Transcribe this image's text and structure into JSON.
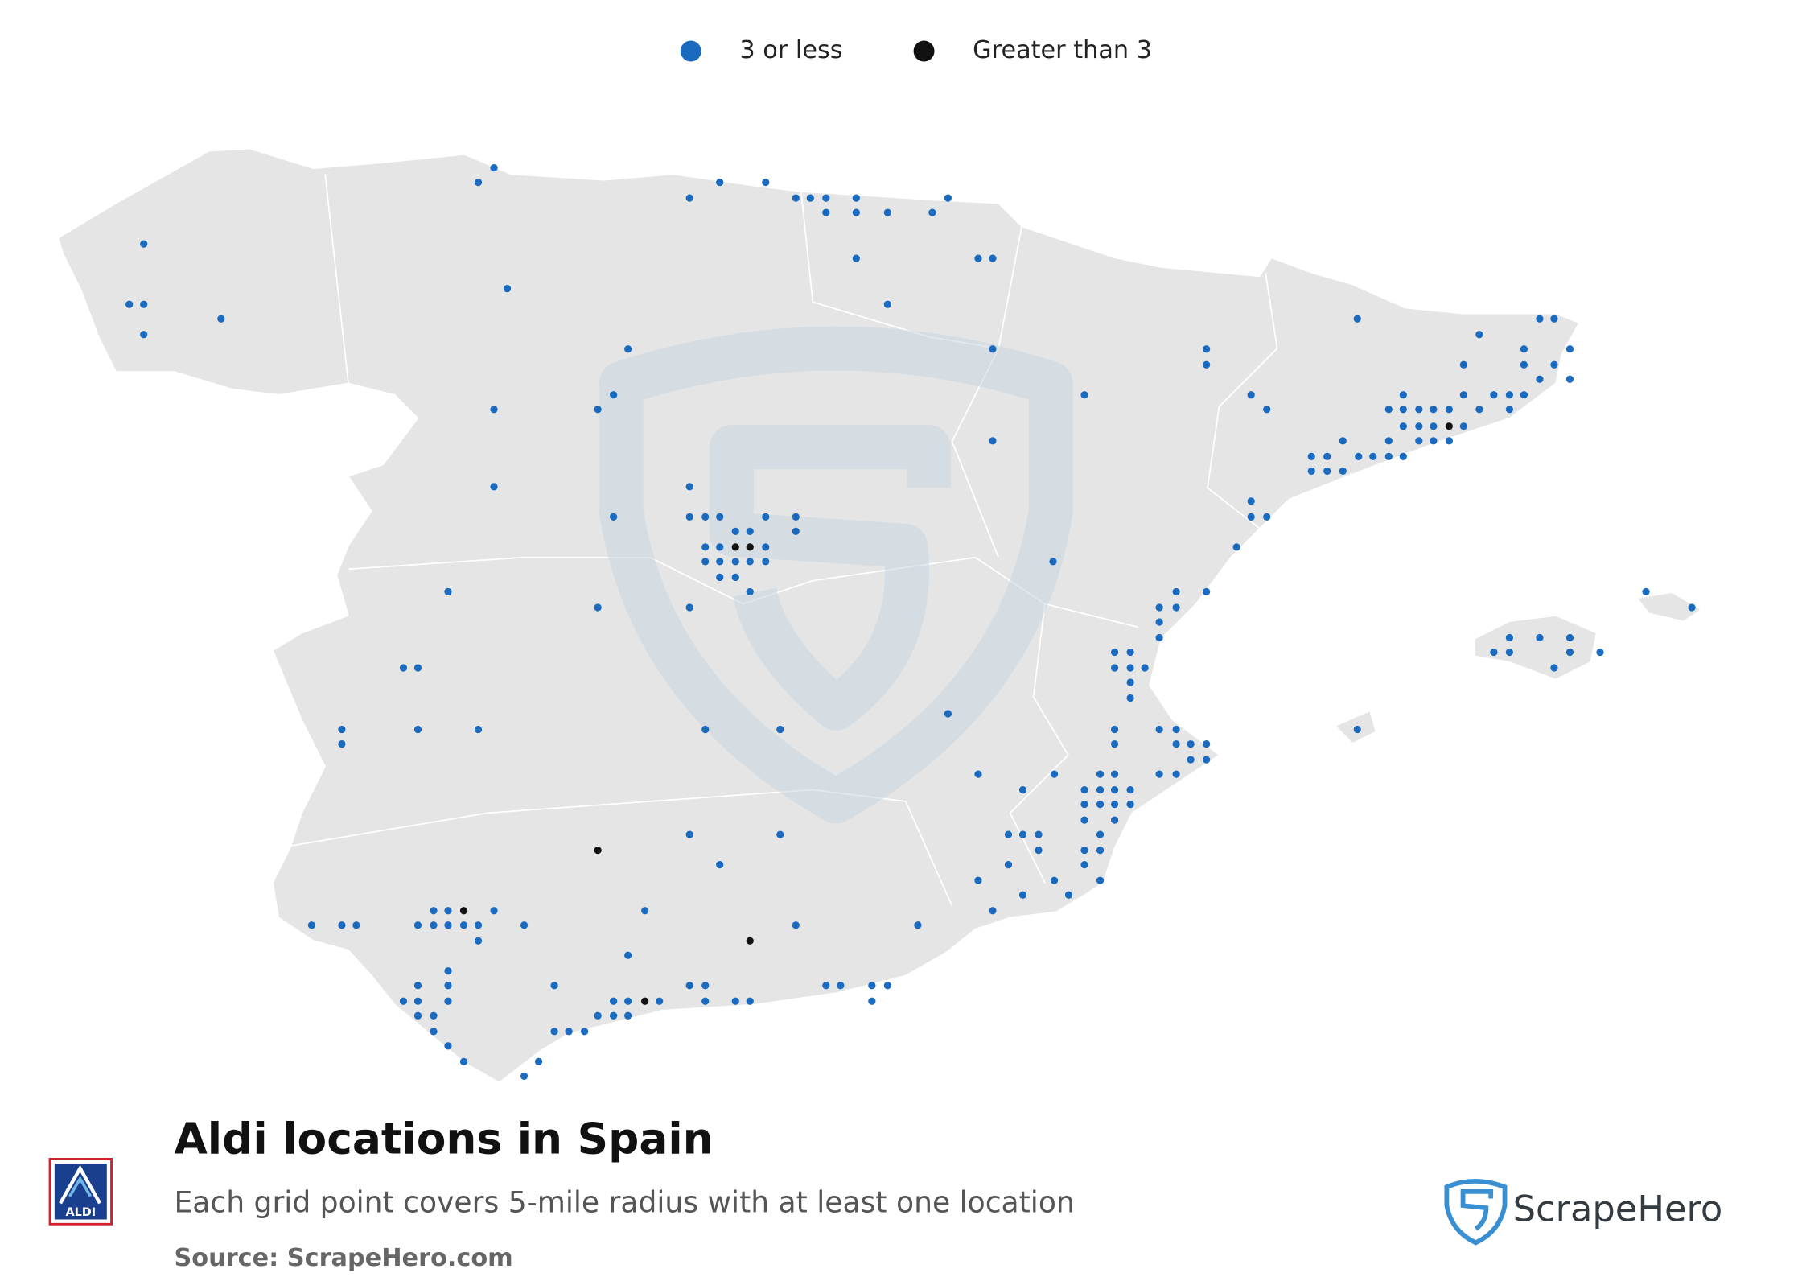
{
  "chart_data": {
    "type": "map",
    "title": "Aldi locations in Spain",
    "subtitle": "Each grid point covers 5-mile radius with at least one location",
    "source": "Source: ScrapeHero.com",
    "logo_text": "ALDI",
    "brand": "ScrapeHero",
    "legend": "top",
    "series": [
      {
        "name": "3 or less",
        "color": "#1a6bbf",
        "points": [
          [
            -8.59,
            42.9
          ],
          [
            -8.71,
            42.4
          ],
          [
            -8.59,
            42.4
          ],
          [
            -8.59,
            42.15
          ],
          [
            -7.95,
            42.28
          ],
          [
            -5.82,
            43.41
          ],
          [
            -5.69,
            43.53
          ],
          [
            -5.58,
            42.53
          ],
          [
            -4.07,
            43.28
          ],
          [
            -3.82,
            43.41
          ],
          [
            -3.44,
            43.41
          ],
          [
            -3.19,
            43.28
          ],
          [
            -3.07,
            43.28
          ],
          [
            -2.94,
            43.28
          ],
          [
            -2.94,
            43.16
          ],
          [
            -2.69,
            43.28
          ],
          [
            -2.69,
            43.16
          ],
          [
            -2.43,
            43.16
          ],
          [
            -2.06,
            43.16
          ],
          [
            -1.93,
            43.28
          ],
          [
            -2.69,
            42.78
          ],
          [
            -1.68,
            42.78
          ],
          [
            -1.56,
            42.78
          ],
          [
            -2.43,
            42.4
          ],
          [
            -1.56,
            42.03
          ],
          [
            -4.58,
            42.03
          ],
          [
            -4.7,
            41.65
          ],
          [
            -4.83,
            41.53
          ],
          [
            -5.69,
            41.53
          ],
          [
            -5.69,
            40.89
          ],
          [
            -0.8,
            41.65
          ],
          [
            -1.56,
            41.27
          ],
          [
            -4.07,
            40.89
          ],
          [
            -4.7,
            40.64
          ],
          [
            -4.07,
            40.64
          ],
          [
            -3.94,
            40.64
          ],
          [
            -3.82,
            40.64
          ],
          [
            -3.44,
            40.64
          ],
          [
            -3.19,
            40.64
          ],
          [
            -3.69,
            40.52
          ],
          [
            -3.57,
            40.52
          ],
          [
            -3.19,
            40.52
          ],
          [
            -3.94,
            40.39
          ],
          [
            -3.82,
            40.39
          ],
          [
            -3.44,
            40.39
          ],
          [
            -3.94,
            40.27
          ],
          [
            -3.82,
            40.27
          ],
          [
            -3.69,
            40.27
          ],
          [
            -3.57,
            40.27
          ],
          [
            -3.44,
            40.27
          ],
          [
            -3.82,
            40.14
          ],
          [
            -3.69,
            40.14
          ],
          [
            -3.57,
            40.02
          ],
          [
            -4.07,
            39.89
          ],
          [
            -4.83,
            39.89
          ],
          [
            -1.06,
            40.27
          ],
          [
            0.21,
            42.03
          ],
          [
            0.21,
            41.9
          ],
          [
            0.58,
            41.65
          ],
          [
            0.71,
            41.53
          ],
          [
            1.46,
            42.28
          ],
          [
            2.47,
            42.15
          ],
          [
            2.97,
            42.28
          ],
          [
            3.09,
            42.28
          ],
          [
            2.84,
            42.03
          ],
          [
            3.22,
            42.03
          ],
          [
            2.34,
            41.9
          ],
          [
            2.84,
            41.9
          ],
          [
            3.09,
            41.9
          ],
          [
            2.97,
            41.78
          ],
          [
            3.22,
            41.78
          ],
          [
            1.84,
            41.65
          ],
          [
            2.34,
            41.65
          ],
          [
            2.59,
            41.65
          ],
          [
            2.72,
            41.65
          ],
          [
            2.84,
            41.65
          ],
          [
            1.72,
            41.53
          ],
          [
            1.84,
            41.53
          ],
          [
            1.97,
            41.53
          ],
          [
            2.09,
            41.53
          ],
          [
            2.22,
            41.53
          ],
          [
            2.47,
            41.53
          ],
          [
            2.72,
            41.53
          ],
          [
            1.84,
            41.39
          ],
          [
            1.97,
            41.39
          ],
          [
            2.09,
            41.39
          ],
          [
            2.34,
            41.39
          ],
          [
            1.34,
            41.27
          ],
          [
            1.72,
            41.27
          ],
          [
            1.97,
            41.27
          ],
          [
            2.09,
            41.27
          ],
          [
            2.22,
            41.27
          ],
          [
            1.08,
            41.14
          ],
          [
            1.21,
            41.14
          ],
          [
            1.47,
            41.14
          ],
          [
            1.59,
            41.14
          ],
          [
            1.72,
            41.14
          ],
          [
            1.84,
            41.14
          ],
          [
            1.08,
            41.02
          ],
          [
            1.21,
            41.02
          ],
          [
            1.34,
            41.02
          ],
          [
            0.58,
            40.77
          ],
          [
            0.58,
            40.64
          ],
          [
            0.71,
            40.64
          ],
          [
            0.46,
            40.39
          ],
          [
            -0.04,
            40.02
          ],
          [
            0.21,
            40.02
          ],
          [
            -0.18,
            39.89
          ],
          [
            -0.04,
            39.89
          ],
          [
            -0.18,
            39.77
          ],
          [
            -0.18,
            39.64
          ],
          [
            -0.55,
            39.52
          ],
          [
            -0.42,
            39.52
          ],
          [
            -0.55,
            39.39
          ],
          [
            -0.42,
            39.39
          ],
          [
            -0.3,
            39.39
          ],
          [
            -0.42,
            39.27
          ],
          [
            -0.42,
            39.14
          ],
          [
            -0.55,
            38.88
          ],
          [
            -0.18,
            38.88
          ],
          [
            -0.04,
            38.88
          ],
          [
            -0.55,
            38.76
          ],
          [
            -0.04,
            38.76
          ],
          [
            0.08,
            38.76
          ],
          [
            0.21,
            38.76
          ],
          [
            0.08,
            38.63
          ],
          [
            0.21,
            38.63
          ],
          [
            -0.67,
            38.51
          ],
          [
            -0.55,
            38.51
          ],
          [
            -0.18,
            38.51
          ],
          [
            -0.04,
            38.51
          ],
          [
            -0.8,
            38.38
          ],
          [
            -0.67,
            38.38
          ],
          [
            -0.55,
            38.38
          ],
          [
            -0.42,
            38.38
          ],
          [
            -0.8,
            38.26
          ],
          [
            -0.67,
            38.26
          ],
          [
            -0.55,
            38.26
          ],
          [
            -0.42,
            38.26
          ],
          [
            -0.8,
            38.13
          ],
          [
            -0.55,
            38.13
          ],
          [
            -0.67,
            38.01
          ],
          [
            -0.8,
            37.88
          ],
          [
            -0.67,
            37.88
          ],
          [
            -0.8,
            37.76
          ],
          [
            -0.67,
            37.63
          ],
          [
            -0.93,
            37.51
          ],
          [
            -1.05,
            37.63
          ],
          [
            -1.18,
            37.88
          ],
          [
            -1.43,
            38.01
          ],
          [
            -1.31,
            38.01
          ],
          [
            -1.18,
            38.01
          ],
          [
            -1.43,
            37.76
          ],
          [
            -1.68,
            37.63
          ],
          [
            -1.31,
            37.51
          ],
          [
            -1.56,
            37.38
          ],
          [
            -1.05,
            38.51
          ],
          [
            -1.31,
            38.38
          ],
          [
            -1.68,
            38.51
          ],
          [
            -1.93,
            39.01
          ],
          [
            3.85,
            40.02
          ],
          [
            4.23,
            39.89
          ],
          [
            2.72,
            39.64
          ],
          [
            2.97,
            39.64
          ],
          [
            3.22,
            39.64
          ],
          [
            2.59,
            39.52
          ],
          [
            2.72,
            39.52
          ],
          [
            3.22,
            39.52
          ],
          [
            3.47,
            39.52
          ],
          [
            3.09,
            39.39
          ],
          [
            1.46,
            38.88
          ],
          [
            -6.07,
            40.02
          ],
          [
            -6.44,
            39.39
          ],
          [
            -6.32,
            39.39
          ],
          [
            -6.95,
            38.88
          ],
          [
            -6.95,
            38.76
          ],
          [
            -6.32,
            38.88
          ],
          [
            -5.82,
            38.88
          ],
          [
            -3.94,
            38.88
          ],
          [
            -3.32,
            38.88
          ],
          [
            -4.07,
            38.01
          ],
          [
            -3.32,
            38.01
          ],
          [
            -3.82,
            37.76
          ],
          [
            -7.2,
            37.26
          ],
          [
            -6.95,
            37.26
          ],
          [
            -6.83,
            37.26
          ],
          [
            -6.32,
            37.26
          ],
          [
            -6.19,
            37.38
          ],
          [
            -6.07,
            37.38
          ],
          [
            -6.19,
            37.26
          ],
          [
            -6.07,
            37.26
          ],
          [
            -5.94,
            37.26
          ],
          [
            -5.82,
            37.26
          ],
          [
            -5.69,
            37.38
          ],
          [
            -5.82,
            37.13
          ],
          [
            -5.44,
            37.26
          ],
          [
            -4.44,
            37.38
          ],
          [
            -3.19,
            37.26
          ],
          [
            -2.18,
            37.26
          ],
          [
            -4.58,
            37.01
          ],
          [
            -6.07,
            36.88
          ],
          [
            -6.32,
            36.76
          ],
          [
            -6.07,
            36.76
          ],
          [
            -6.44,
            36.63
          ],
          [
            -6.32,
            36.63
          ],
          [
            -6.07,
            36.63
          ],
          [
            -6.32,
            36.51
          ],
          [
            -6.19,
            36.51
          ],
          [
            -6.19,
            36.38
          ],
          [
            -6.07,
            36.26
          ],
          [
            -5.94,
            36.13
          ],
          [
            -5.32,
            36.13
          ],
          [
            -5.44,
            36.01
          ],
          [
            -5.19,
            36.76
          ],
          [
            -5.19,
            36.38
          ],
          [
            -5.07,
            36.38
          ],
          [
            -4.94,
            36.38
          ],
          [
            -4.83,
            36.51
          ],
          [
            -4.7,
            36.51
          ],
          [
            -4.7,
            36.63
          ],
          [
            -4.58,
            36.63
          ],
          [
            -4.58,
            36.51
          ],
          [
            -4.32,
            36.63
          ],
          [
            -4.07,
            36.76
          ],
          [
            -3.94,
            36.76
          ],
          [
            -3.94,
            36.63
          ],
          [
            -3.69,
            36.63
          ],
          [
            -3.57,
            36.63
          ],
          [
            -2.94,
            36.76
          ],
          [
            -2.82,
            36.76
          ],
          [
            -2.56,
            36.76
          ],
          [
            -2.43,
            36.76
          ],
          [
            -2.56,
            36.63
          ]
        ]
      },
      {
        "name": "Greater than 3",
        "color": "#111111",
        "points": [
          [
            -3.69,
            40.39
          ],
          [
            -3.57,
            40.39
          ],
          [
            2.22,
            41.39
          ],
          [
            -4.83,
            37.88
          ],
          [
            -5.94,
            37.38
          ],
          [
            -4.44,
            36.63
          ],
          [
            -3.57,
            37.13
          ]
        ]
      }
    ]
  }
}
